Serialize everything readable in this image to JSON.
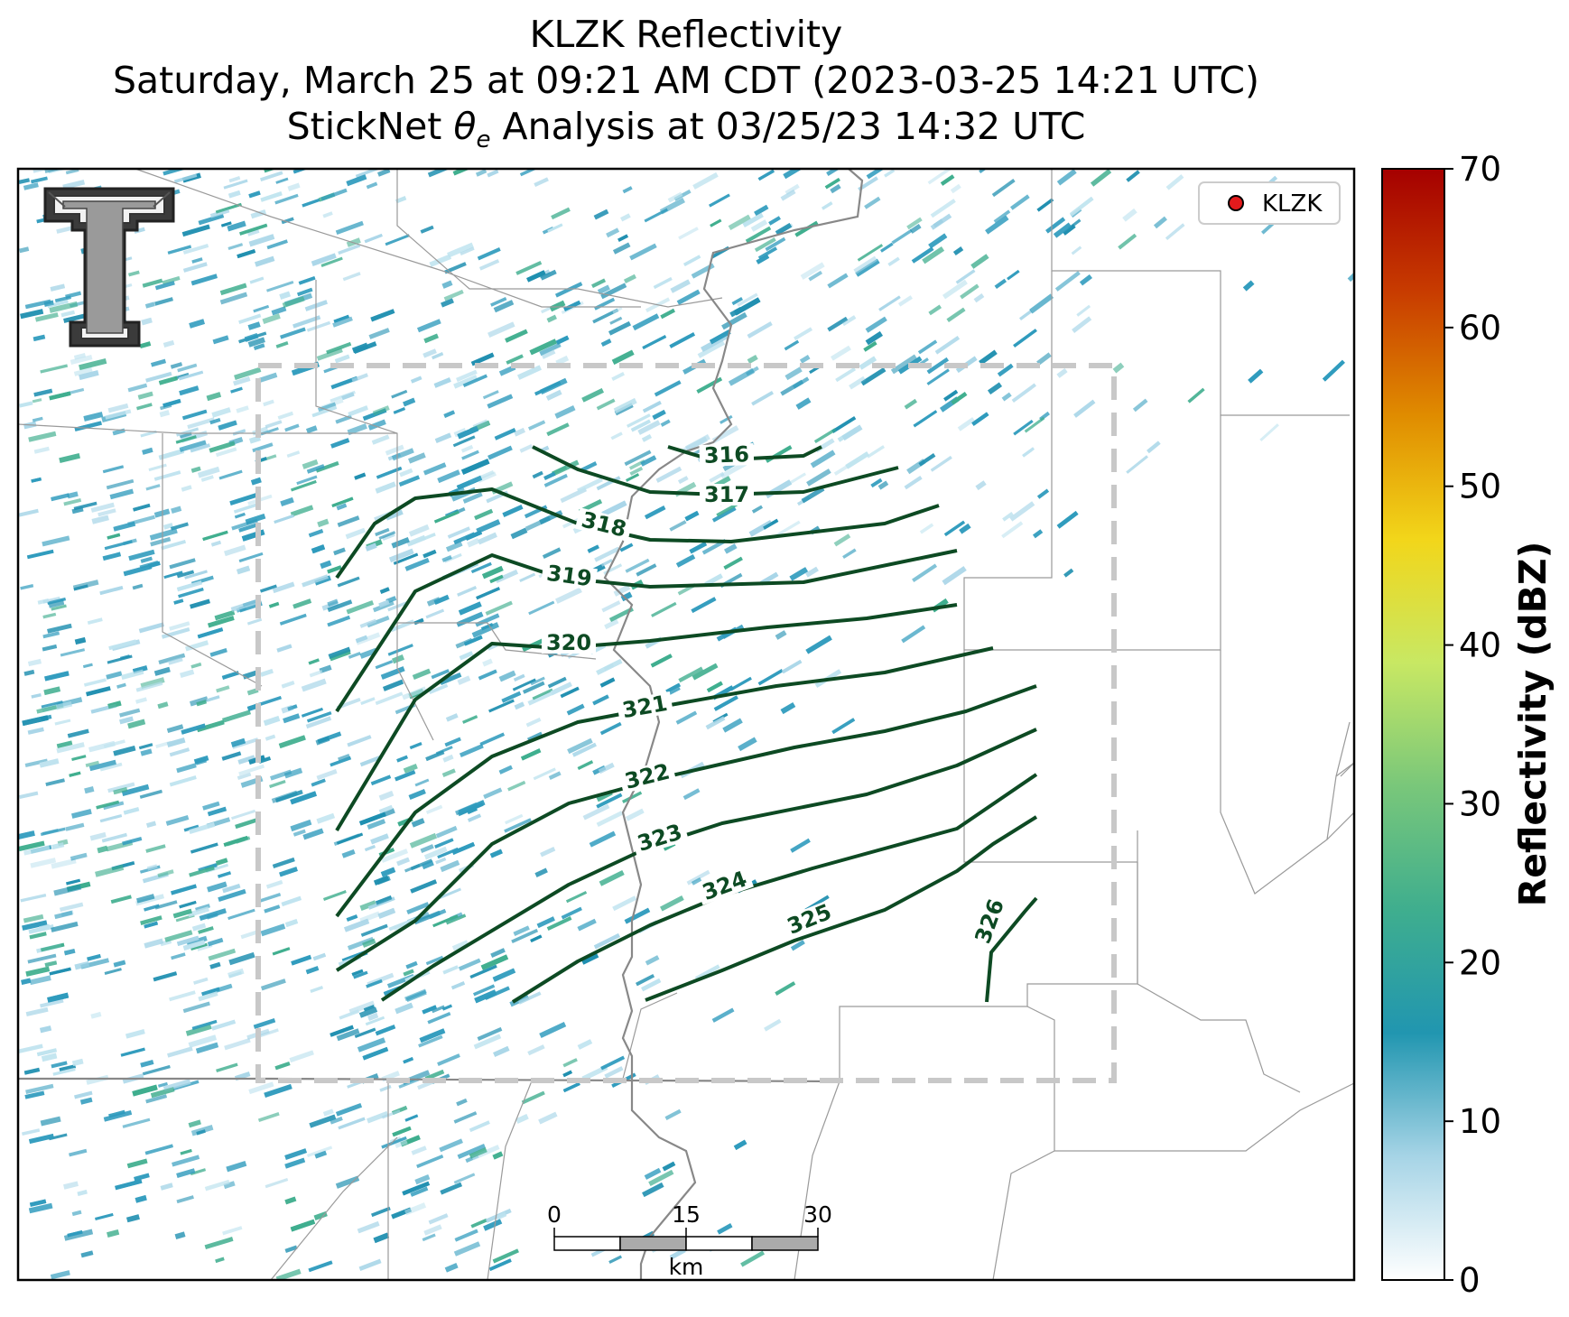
{
  "title": {
    "line1": "KLZK Reflectivity",
    "line2": "Saturday, March 25 at 09:21 AM CDT (2023-03-25 14:21 UTC)",
    "line3_prefix": "StickNet ",
    "line3_theta": "θ",
    "line3_sub": "e",
    "line3_suffix": " Analysis at 03/25/23 14:32 UTC"
  },
  "legend": {
    "label": "KLZK",
    "marker_color": "#e31a1c"
  },
  "colorbar": {
    "label": "Reflectivity (dBZ)",
    "ticks": [
      "0",
      "10",
      "20",
      "30",
      "40",
      "50",
      "60",
      "70"
    ],
    "range": [
      0,
      70
    ],
    "stops": [
      "#ffffff",
      "#a6d4e6",
      "#2196b0",
      "#3fae8e",
      "#79c77a",
      "#c8e863",
      "#f2d61a",
      "#e08c00",
      "#c83c00",
      "#a50000"
    ]
  },
  "contours": {
    "line_color": "#0d4a23",
    "labels": [
      "316",
      "317",
      "318",
      "319",
      "320",
      "321",
      "322",
      "323",
      "324",
      "325",
      "326"
    ]
  },
  "scale_bar": {
    "ticks": [
      "0",
      "15",
      "30"
    ],
    "unit": "km"
  },
  "colors": {
    "radar_light": "#a9d6e8",
    "radar_mid": "#2f9bbd",
    "radar_green": "#3fae8e",
    "analysis_box": "#c8c8c8",
    "state_border": "#888888",
    "county_line": "#9a9a9a"
  },
  "logo": {
    "name": "texas-tech-double-t-logo"
  }
}
